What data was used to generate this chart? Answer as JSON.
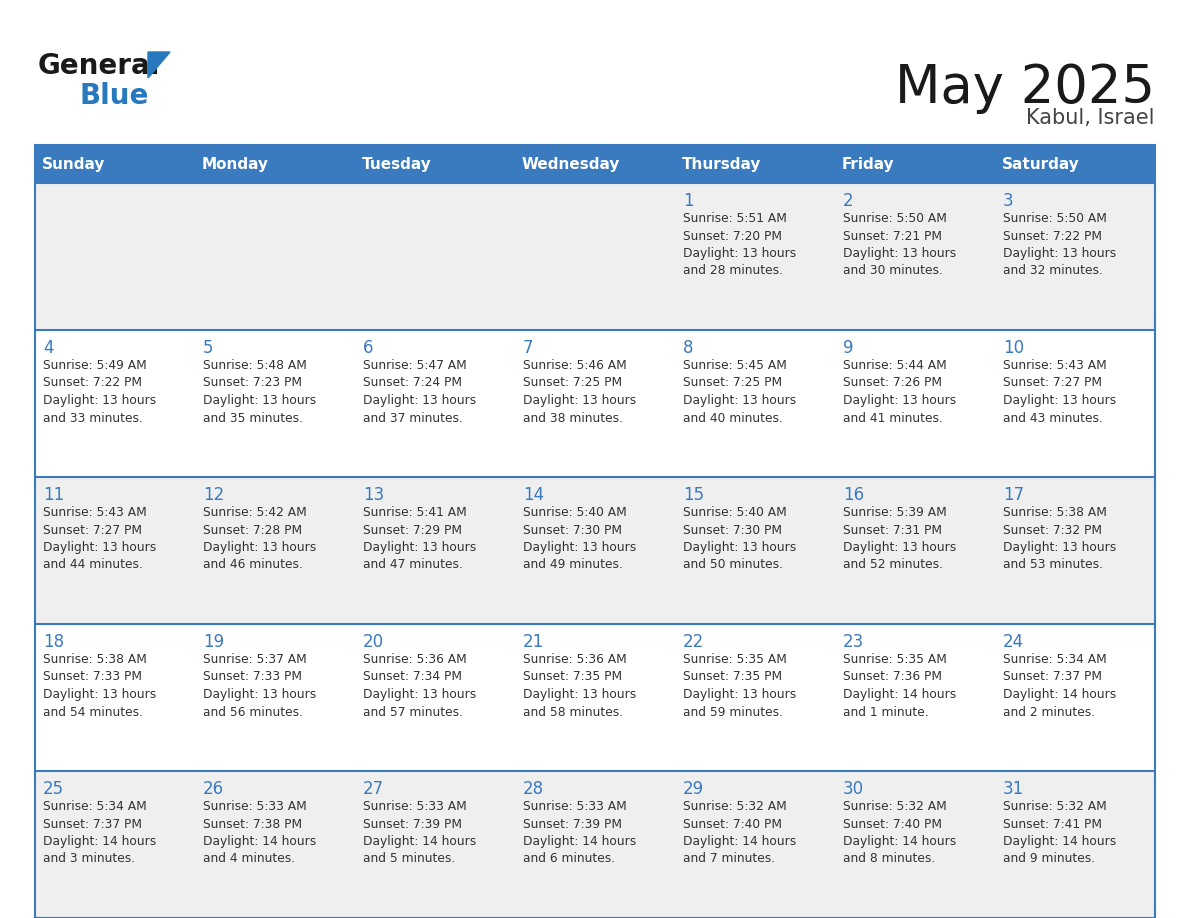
{
  "title": "May 2025",
  "subtitle": "Kabul, Israel",
  "days_of_week": [
    "Sunday",
    "Monday",
    "Tuesday",
    "Wednesday",
    "Thursday",
    "Friday",
    "Saturday"
  ],
  "header_bg": "#3a7abf",
  "header_text": "#ffffff",
  "row_bg_even": "#efefef",
  "row_bg_odd": "#ffffff",
  "day_number_color": "#3a7abf",
  "text_color": "#333333",
  "border_color": "#3a7abf",
  "logo_general_color": "#1a1a1a",
  "logo_blue_color": "#2878be",
  "logo_triangle_color": "#2878be",
  "title_color": "#1a1a1a",
  "subtitle_color": "#444444",
  "weeks": [
    {
      "days": [
        {
          "day": null,
          "sunrise": null,
          "sunset": null,
          "daylight": null
        },
        {
          "day": null,
          "sunrise": null,
          "sunset": null,
          "daylight": null
        },
        {
          "day": null,
          "sunrise": null,
          "sunset": null,
          "daylight": null
        },
        {
          "day": null,
          "sunrise": null,
          "sunset": null,
          "daylight": null
        },
        {
          "day": 1,
          "sunrise": "5:51 AM",
          "sunset": "7:20 PM",
          "daylight": "13 hours and 28 minutes."
        },
        {
          "day": 2,
          "sunrise": "5:50 AM",
          "sunset": "7:21 PM",
          "daylight": "13 hours and 30 minutes."
        },
        {
          "day": 3,
          "sunrise": "5:50 AM",
          "sunset": "7:22 PM",
          "daylight": "13 hours and 32 minutes."
        }
      ]
    },
    {
      "days": [
        {
          "day": 4,
          "sunrise": "5:49 AM",
          "sunset": "7:22 PM",
          "daylight": "13 hours and 33 minutes."
        },
        {
          "day": 5,
          "sunrise": "5:48 AM",
          "sunset": "7:23 PM",
          "daylight": "13 hours and 35 minutes."
        },
        {
          "day": 6,
          "sunrise": "5:47 AM",
          "sunset": "7:24 PM",
          "daylight": "13 hours and 37 minutes."
        },
        {
          "day": 7,
          "sunrise": "5:46 AM",
          "sunset": "7:25 PM",
          "daylight": "13 hours and 38 minutes."
        },
        {
          "day": 8,
          "sunrise": "5:45 AM",
          "sunset": "7:25 PM",
          "daylight": "13 hours and 40 minutes."
        },
        {
          "day": 9,
          "sunrise": "5:44 AM",
          "sunset": "7:26 PM",
          "daylight": "13 hours and 41 minutes."
        },
        {
          "day": 10,
          "sunrise": "5:43 AM",
          "sunset": "7:27 PM",
          "daylight": "13 hours and 43 minutes."
        }
      ]
    },
    {
      "days": [
        {
          "day": 11,
          "sunrise": "5:43 AM",
          "sunset": "7:27 PM",
          "daylight": "13 hours and 44 minutes."
        },
        {
          "day": 12,
          "sunrise": "5:42 AM",
          "sunset": "7:28 PM",
          "daylight": "13 hours and 46 minutes."
        },
        {
          "day": 13,
          "sunrise": "5:41 AM",
          "sunset": "7:29 PM",
          "daylight": "13 hours and 47 minutes."
        },
        {
          "day": 14,
          "sunrise": "5:40 AM",
          "sunset": "7:30 PM",
          "daylight": "13 hours and 49 minutes."
        },
        {
          "day": 15,
          "sunrise": "5:40 AM",
          "sunset": "7:30 PM",
          "daylight": "13 hours and 50 minutes."
        },
        {
          "day": 16,
          "sunrise": "5:39 AM",
          "sunset": "7:31 PM",
          "daylight": "13 hours and 52 minutes."
        },
        {
          "day": 17,
          "sunrise": "5:38 AM",
          "sunset": "7:32 PM",
          "daylight": "13 hours and 53 minutes."
        }
      ]
    },
    {
      "days": [
        {
          "day": 18,
          "sunrise": "5:38 AM",
          "sunset": "7:33 PM",
          "daylight": "13 hours and 54 minutes."
        },
        {
          "day": 19,
          "sunrise": "5:37 AM",
          "sunset": "7:33 PM",
          "daylight": "13 hours and 56 minutes."
        },
        {
          "day": 20,
          "sunrise": "5:36 AM",
          "sunset": "7:34 PM",
          "daylight": "13 hours and 57 minutes."
        },
        {
          "day": 21,
          "sunrise": "5:36 AM",
          "sunset": "7:35 PM",
          "daylight": "13 hours and 58 minutes."
        },
        {
          "day": 22,
          "sunrise": "5:35 AM",
          "sunset": "7:35 PM",
          "daylight": "13 hours and 59 minutes."
        },
        {
          "day": 23,
          "sunrise": "5:35 AM",
          "sunset": "7:36 PM",
          "daylight": "14 hours and 1 minute."
        },
        {
          "day": 24,
          "sunrise": "5:34 AM",
          "sunset": "7:37 PM",
          "daylight": "14 hours and 2 minutes."
        }
      ]
    },
    {
      "days": [
        {
          "day": 25,
          "sunrise": "5:34 AM",
          "sunset": "7:37 PM",
          "daylight": "14 hours and 3 minutes."
        },
        {
          "day": 26,
          "sunrise": "5:33 AM",
          "sunset": "7:38 PM",
          "daylight": "14 hours and 4 minutes."
        },
        {
          "day": 27,
          "sunrise": "5:33 AM",
          "sunset": "7:39 PM",
          "daylight": "14 hours and 5 minutes."
        },
        {
          "day": 28,
          "sunrise": "5:33 AM",
          "sunset": "7:39 PM",
          "daylight": "14 hours and 6 minutes."
        },
        {
          "day": 29,
          "sunrise": "5:32 AM",
          "sunset": "7:40 PM",
          "daylight": "14 hours and 7 minutes."
        },
        {
          "day": 30,
          "sunrise": "5:32 AM",
          "sunset": "7:40 PM",
          "daylight": "14 hours and 8 minutes."
        },
        {
          "day": 31,
          "sunrise": "5:32 AM",
          "sunset": "7:41 PM",
          "daylight": "14 hours and 9 minutes."
        }
      ]
    }
  ]
}
